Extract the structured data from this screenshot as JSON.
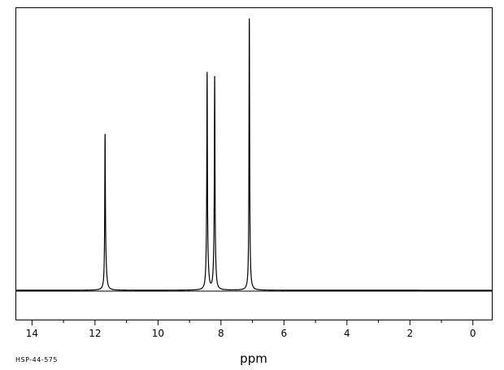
{
  "chart_data": {
    "type": "line",
    "xlabel": "ppm",
    "ylabel": "",
    "title": "",
    "xlim": [
      14.5,
      -0.6
    ],
    "x_reversed": true,
    "ylim": [
      -0.13,
      1.25
    ],
    "x_major_ticks": [
      14,
      12,
      10,
      8,
      6,
      4,
      2,
      0
    ],
    "x_tick_labels": [
      "14",
      "12",
      "10",
      "8",
      "6",
      "4",
      "2",
      "0"
    ],
    "x_minor_ticks": [
      13,
      11,
      9,
      7,
      5,
      3,
      1
    ],
    "grid": false,
    "legend": "none",
    "line_color": "#000000",
    "series": [
      {
        "peaks": [
          {
            "ppm": 11.68,
            "height": 0.64,
            "width": 0.012
          },
          {
            "ppm": 11.655,
            "height": 0.08,
            "width": 0.035
          },
          {
            "ppm": 8.44,
            "height": 0.92,
            "width": 0.012
          },
          {
            "ppm": 8.465,
            "height": 0.05,
            "width": 0.03
          },
          {
            "ppm": 8.4,
            "height": 0.04,
            "width": 0.03
          },
          {
            "ppm": 8.2,
            "height": 0.9,
            "width": 0.012
          },
          {
            "ppm": 8.23,
            "height": 0.05,
            "width": 0.03
          },
          {
            "ppm": 8.17,
            "height": 0.04,
            "width": 0.03
          },
          {
            "ppm": 7.1,
            "height": 1.18,
            "width": 0.012
          },
          {
            "ppm": 7.08,
            "height": 0.03,
            "width": 0.04
          }
        ]
      }
    ]
  },
  "figure": {
    "xlabel_text": "ppm",
    "code_text": "HSP-44-575"
  }
}
